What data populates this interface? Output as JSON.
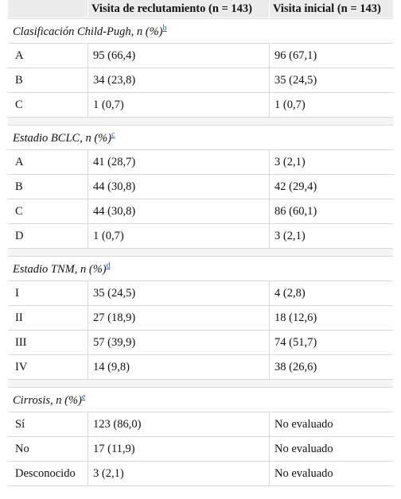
{
  "header": {
    "col1": "",
    "col2": "Visita de reclutamiento (n = 143)",
    "col3": "Visita inicial (n = 143)"
  },
  "sections": [
    {
      "title": "Clasificación Child-Pugh, n (%)",
      "note": "b",
      "rows": [
        {
          "label": "A",
          "reclutamiento": "95 (66,4)",
          "inicial": "96 (67,1)"
        },
        {
          "label": "B",
          "reclutamiento": "34 (23,8)",
          "inicial": "35 (24,5)"
        },
        {
          "label": "C",
          "reclutamiento": "1 (0,7)",
          "inicial": "1 (0,7)"
        }
      ]
    },
    {
      "title": "Estadio BCLC, n (%)",
      "note": "c",
      "rows": [
        {
          "label": "A",
          "reclutamiento": "41 (28,7)",
          "inicial": "3 (2,1)"
        },
        {
          "label": "B",
          "reclutamiento": "44 (30,8)",
          "inicial": "42 (29,4)"
        },
        {
          "label": "C",
          "reclutamiento": "44 (30,8)",
          "inicial": "86 (60,1)"
        },
        {
          "label": "D",
          "reclutamiento": "1 (0,7)",
          "inicial": "3 (2,1)"
        }
      ]
    },
    {
      "title": "Estadio TNM, n (%)",
      "note": "d",
      "rows": [
        {
          "label": "I",
          "reclutamiento": "35 (24,5)",
          "inicial": "4 (2,8)"
        },
        {
          "label": "II",
          "reclutamiento": "27 (18,9)",
          "inicial": "18 (12,6)"
        },
        {
          "label": "III",
          "reclutamiento": "57 (39,9)",
          "inicial": "74 (51,7)"
        },
        {
          "label": "IV",
          "reclutamiento": "14 (9,8)",
          "inicial": "38 (26,6)"
        }
      ]
    },
    {
      "title": "Cirrosis, n (%)",
      "note": "e",
      "rows": [
        {
          "label": "Sí",
          "reclutamiento": "123 (86,0)",
          "inicial": "No evaluado"
        },
        {
          "label": "No",
          "reclutamiento": "17 (11,9)",
          "inicial": "No evaluado"
        },
        {
          "label": "Desconocido",
          "reclutamiento": "3 (2,1)",
          "inicial": "No evaluado"
        }
      ]
    }
  ]
}
